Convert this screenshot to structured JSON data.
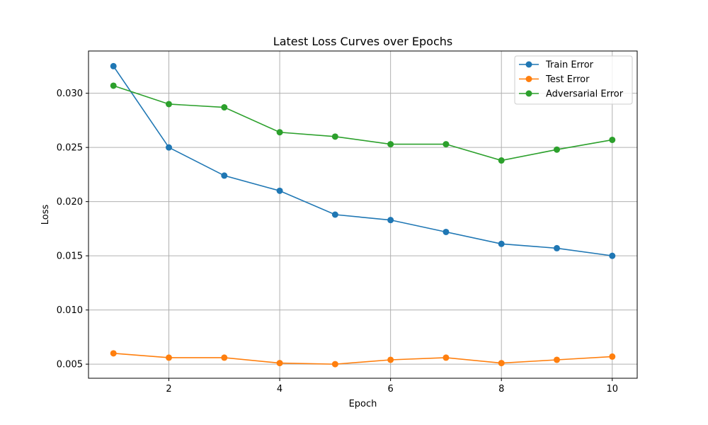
{
  "chart_data": {
    "type": "line",
    "title": "Latest Loss Curves over Epochs",
    "xlabel": "Epoch",
    "ylabel": "Loss",
    "x": [
      1,
      2,
      3,
      4,
      5,
      6,
      7,
      8,
      9,
      10
    ],
    "xlim": [
      0.55,
      10.45
    ],
    "ylim": [
      0.0037,
      0.0339
    ],
    "xticks": [
      2,
      4,
      6,
      8,
      10
    ],
    "xtick_labels": [
      "2",
      "4",
      "6",
      "8",
      "10"
    ],
    "yticks": [
      0.005,
      0.01,
      0.015,
      0.02,
      0.025,
      0.03
    ],
    "ytick_labels": [
      "0.005",
      "0.010",
      "0.015",
      "0.020",
      "0.025",
      "0.030"
    ],
    "grid": true,
    "legend_position": "top-right",
    "series": [
      {
        "name": "Train Error",
        "color": "#1f77b4",
        "marker": "circle",
        "values": [
          0.0325,
          0.025,
          0.0224,
          0.021,
          0.0188,
          0.0183,
          0.0172,
          0.0161,
          0.0157,
          0.015
        ]
      },
      {
        "name": "Test Error",
        "color": "#ff7f0e",
        "marker": "circle",
        "values": [
          0.006,
          0.0056,
          0.0056,
          0.0051,
          0.005,
          0.0054,
          0.0056,
          0.0051,
          0.0054,
          0.0057
        ]
      },
      {
        "name": "Adversarial Error",
        "color": "#2ca02c",
        "marker": "circle",
        "values": [
          0.0307,
          0.029,
          0.0287,
          0.0264,
          0.026,
          0.0253,
          0.0253,
          0.0238,
          0.0248,
          0.0257
        ]
      }
    ]
  }
}
